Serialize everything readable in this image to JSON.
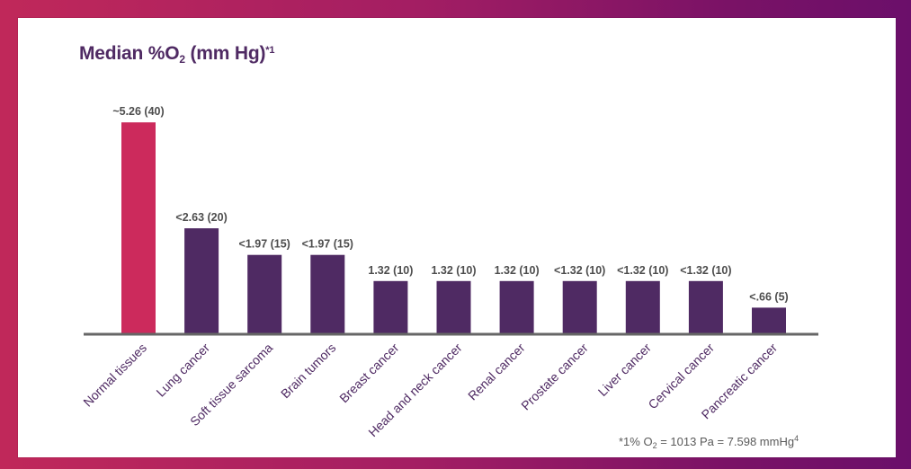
{
  "title": {
    "prefix": "Median %O",
    "sub": "2",
    "suffix": " (mm Hg)",
    "sup": "*1"
  },
  "footnote": {
    "prefix": "*1% O",
    "sub": "2",
    "suffix": " = 1013 Pa = 7.598 mmHg",
    "sup": "4"
  },
  "colors": {
    "background_gradient": [
      "#c0285a",
      "#6b0f6a"
    ],
    "highlight_bar": "#cc2a5c",
    "bar": "#4f2a63",
    "axis": "#666666",
    "title": "#4f2a63",
    "category_text": "#4f2a63",
    "value_text": "#4d4d4d"
  },
  "chart_data": {
    "type": "bar",
    "title": "Median %O2 (mm Hg)*1",
    "xlabel": "",
    "ylabel": "",
    "ylim": [
      0,
      5.8
    ],
    "grid": false,
    "legend": "none",
    "categories": [
      "Normal tissues",
      "Lung cancer",
      "Soft tissue sarcoma",
      "Brain tumors",
      "Breast cancer",
      "Head and neck cancer",
      "Renal cancer",
      "Prostate cancer",
      "Liver cancer",
      "Cervical cancer",
      "Pancreatic cancer"
    ],
    "values": [
      5.26,
      2.63,
      1.97,
      1.97,
      1.32,
      1.32,
      1.32,
      1.32,
      1.32,
      1.32,
      0.66
    ],
    "value_labels": [
      "~5.26 (40)",
      "<2.63 (20)",
      "<1.97 (15)",
      "<1.97 (15)",
      "1.32 (10)",
      "1.32 (10)",
      "1.32 (10)",
      "<1.32 (10)",
      "<1.32 (10)",
      "<1.32 (10)",
      "<.66 (5)"
    ],
    "highlight_index": 0
  }
}
